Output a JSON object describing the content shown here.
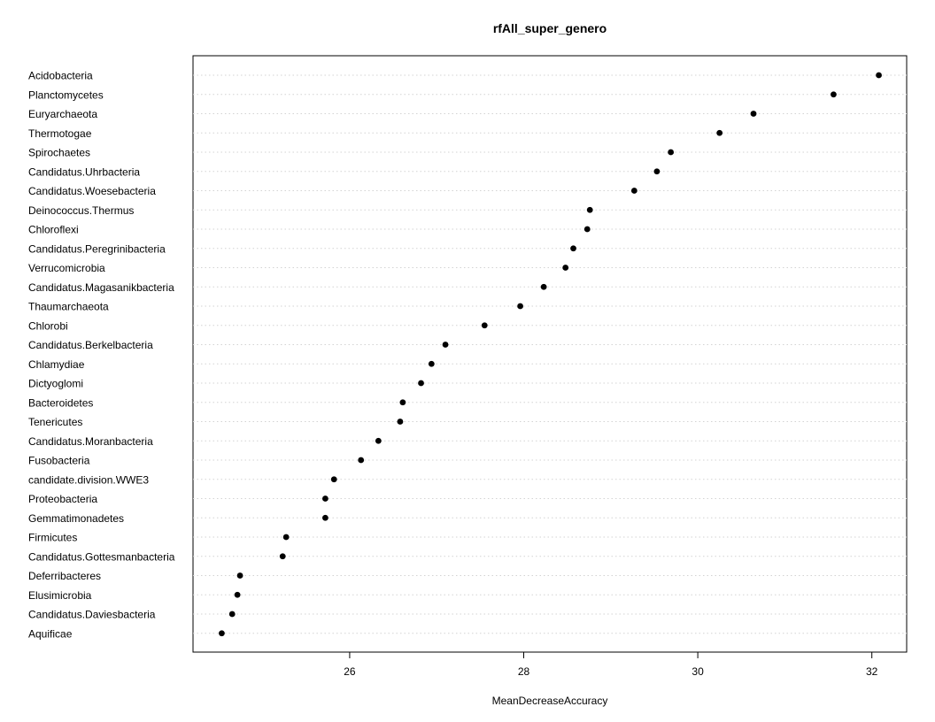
{
  "chart_data": {
    "type": "scatter",
    "title": "rfAll_super_genero",
    "xlabel": "MeanDecreaseAccuracy",
    "ylabel": "",
    "xlim": [
      24.2,
      32.4
    ],
    "xticks": [
      26,
      28,
      30,
      32
    ],
    "grid": "horizontal dotted guide lines",
    "categories": [
      "Acidobacteria",
      "Planctomycetes",
      "Euryarchaeota",
      "Thermotogae",
      "Spirochaetes",
      "Candidatus.Uhrbacteria",
      "Candidatus.Woesebacteria",
      "Deinococcus.Thermus",
      "Chloroflexi",
      "Candidatus.Peregrinibacteria",
      "Verrucomicrobia",
      "Candidatus.Magasanikbacteria",
      "Thaumarchaeota",
      "Chlorobi",
      "Candidatus.Berkelbacteria",
      "Chlamydiae",
      "Dictyoglomi",
      "Bacteroidetes",
      "Tenericutes",
      "Candidatus.Moranbacteria",
      "Fusobacteria",
      "candidate.division.WWE3",
      "Proteobacteria",
      "Gemmatimonadetes",
      "Firmicutes",
      "Candidatus.Gottesmanbacteria",
      "Deferribacteres",
      "Elusimicrobia",
      "Candidatus.Daviesbacteria",
      "Aquificae"
    ],
    "values": [
      32.08,
      31.56,
      30.64,
      30.25,
      29.69,
      29.53,
      29.27,
      28.76,
      28.73,
      28.57,
      28.48,
      28.23,
      27.96,
      27.55,
      27.1,
      26.94,
      26.82,
      26.61,
      26.58,
      26.33,
      26.13,
      25.82,
      25.72,
      25.72,
      25.27,
      25.23,
      24.74,
      24.71,
      24.65,
      24.53
    ]
  }
}
